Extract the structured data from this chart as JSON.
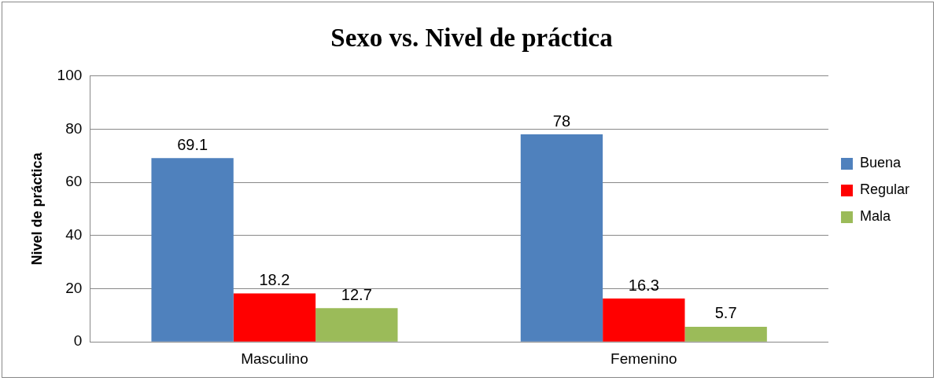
{
  "chart_data": {
    "type": "bar",
    "title": "Sexo vs. Nivel de práctica",
    "ylabel": "Nivel de práctica",
    "categories": [
      "Masculino",
      "Femenino"
    ],
    "series": [
      {
        "name": "Buena",
        "color": "#4f81bd",
        "values": [
          69.1,
          78
        ]
      },
      {
        "name": "Regular",
        "color": "#ff0000",
        "values": [
          18.2,
          16.3
        ]
      },
      {
        "name": "Mala",
        "color": "#9bbb59",
        "values": [
          12.7,
          5.7
        ]
      }
    ],
    "ylim": [
      0,
      100
    ],
    "yticks": [
      0,
      20,
      40,
      60,
      80,
      100
    ],
    "grid": "y",
    "legend": "right",
    "data_labels": true
  }
}
